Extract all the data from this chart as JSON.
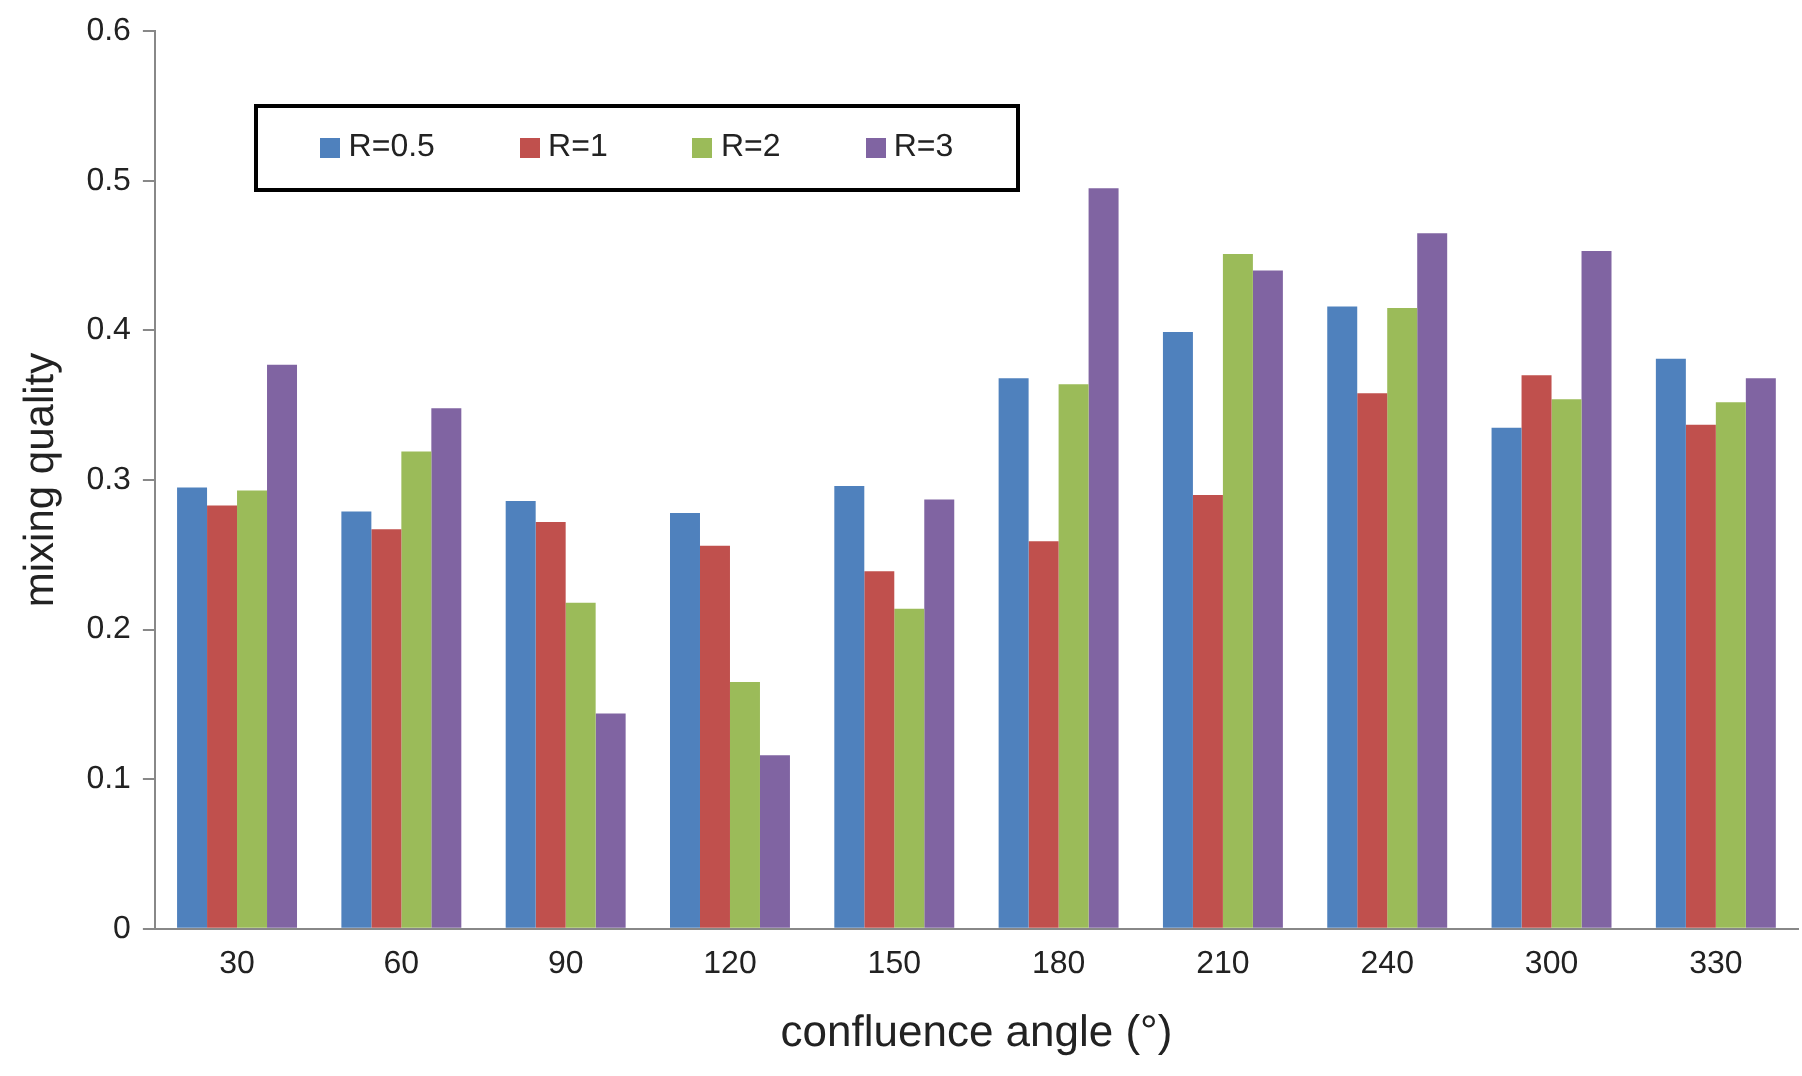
{
  "chart_data": {
    "type": "bar",
    "xlabel": "confluence angle (°)",
    "ylabel": "mixing quality",
    "categories": [
      "30",
      "60",
      "90",
      "120",
      "150",
      "180",
      "210",
      "240",
      "300",
      "330"
    ],
    "series": [
      {
        "name": "R=0.5",
        "color": "#4f81bd",
        "values": [
          0.295,
          0.279,
          0.286,
          0.278,
          0.296,
          0.368,
          0.399,
          0.416,
          0.335,
          0.381
        ]
      },
      {
        "name": "R=1",
        "color": "#c0504d",
        "values": [
          0.283,
          0.267,
          0.272,
          0.256,
          0.239,
          0.259,
          0.29,
          0.358,
          0.37,
          0.337
        ]
      },
      {
        "name": "R=2",
        "color": "#9bbb59",
        "values": [
          0.293,
          0.319,
          0.218,
          0.165,
          0.214,
          0.364,
          0.451,
          0.415,
          0.354,
          0.352
        ]
      },
      {
        "name": "R=3",
        "color": "#8064a2",
        "values": [
          0.377,
          0.348,
          0.144,
          0.116,
          0.287,
          0.495,
          0.44,
          0.465,
          0.453,
          0.368
        ]
      }
    ],
    "ylim": [
      0,
      0.6
    ],
    "yticks": [
      0,
      0.1,
      0.2,
      0.3,
      0.4,
      0.5,
      0.6
    ],
    "grid": false,
    "legend": "top left"
  }
}
